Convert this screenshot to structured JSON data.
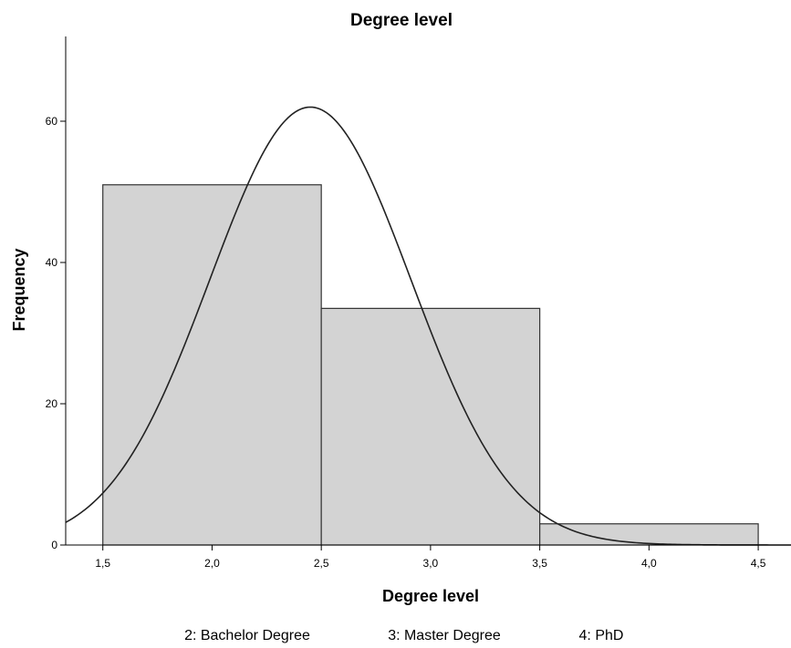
{
  "chart_data": {
    "type": "bar",
    "title": "Degree level",
    "xlabel": "Degree level",
    "ylabel": "Frequency",
    "xlim": [
      1.33,
      4.65
    ],
    "ylim": [
      0,
      72
    ],
    "x_ticks": [
      "1,5",
      "2,0",
      "2,5",
      "3,0",
      "3,5",
      "4,0",
      "4,5"
    ],
    "x_tick_values": [
      1.5,
      2.0,
      2.5,
      3.0,
      3.5,
      4.0,
      4.5
    ],
    "y_ticks": [
      "0",
      "20",
      "40",
      "60"
    ],
    "y_tick_values": [
      0,
      20,
      40,
      60
    ],
    "bins": [
      {
        "x_start": 1.5,
        "x_end": 2.5,
        "value": 51
      },
      {
        "x_start": 2.5,
        "x_end": 3.5,
        "value": 33.5
      },
      {
        "x_start": 3.5,
        "x_end": 4.5,
        "value": 3
      }
    ],
    "normal_curve": {
      "mean": 2.45,
      "sd": 0.46,
      "peak": 62
    },
    "bar_color": "#d3d3d3",
    "grid": false,
    "legend": null
  },
  "footnote": {
    "items": [
      "2: Bachelor Degree",
      "3: Master Degree",
      "4: PhD"
    ]
  }
}
